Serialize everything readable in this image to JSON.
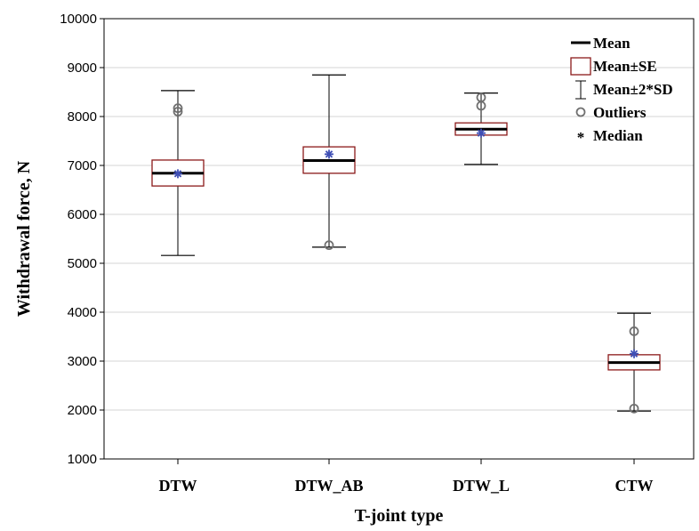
{
  "chart_data": {
    "type": "box",
    "xlabel": "T-joint type",
    "ylabel": "Withdrawal force, N",
    "ylim": [
      1000,
      10000
    ],
    "yticks": [
      1000,
      2000,
      3000,
      4000,
      5000,
      6000,
      7000,
      8000,
      9000,
      10000
    ],
    "grid": "horizontal",
    "legend_position": "top-right",
    "categories": [
      "DTW",
      "DTW_AB",
      "DTW_L",
      "CTW"
    ],
    "series": [
      {
        "category": "DTW",
        "mean": 6840,
        "se_low": 6580,
        "se_high": 7110,
        "sd2_low": 5160,
        "sd2_high": 8530,
        "median": 6830,
        "outliers": [
          8100,
          8170
        ]
      },
      {
        "category": "DTW_AB",
        "mean": 7100,
        "se_low": 6840,
        "se_high": 7380,
        "sd2_low": 5330,
        "sd2_high": 8850,
        "median": 7230,
        "outliers": [
          5370
        ]
      },
      {
        "category": "DTW_L",
        "mean": 7740,
        "se_low": 7620,
        "se_high": 7870,
        "sd2_low": 7020,
        "sd2_high": 8480,
        "median": 7660,
        "outliers": [
          8220,
          8390
        ]
      },
      {
        "category": "CTW",
        "mean": 2970,
        "se_low": 2820,
        "se_high": 3130,
        "sd2_low": 1980,
        "sd2_high": 3980,
        "median": 3150,
        "outliers": [
          2030,
          3610
        ]
      }
    ],
    "legend": [
      {
        "symbol": "line",
        "label": "Mean"
      },
      {
        "symbol": "box",
        "label": "Mean±SE"
      },
      {
        "symbol": "whisker",
        "label": "Mean±2*SD"
      },
      {
        "symbol": "circle",
        "label": "Outliers"
      },
      {
        "symbol": "star",
        "label": "Median"
      }
    ],
    "colors": {
      "box": "#8b1a1a",
      "mean": "#000000",
      "whisker": "#000000",
      "median": "#3f4fb5",
      "outlier": "#707070",
      "grid": "#d4d4d4"
    }
  }
}
